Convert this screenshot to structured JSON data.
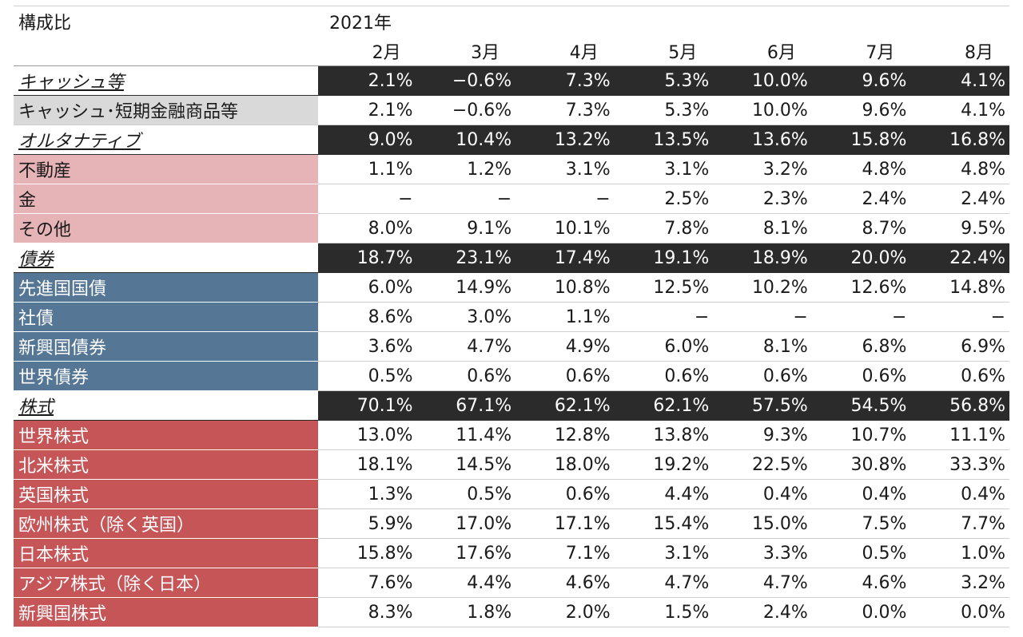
{
  "title": "構成比",
  "year": "2021年",
  "months": [
    "2月",
    "3月",
    "4月",
    "5月",
    "6月",
    "7月",
    "8月"
  ],
  "rows": [
    {
      "label": "キャッシュ等",
      "kind": "cat",
      "values": [
        "2.1%",
        "−0.6%",
        "7.3%",
        "5.3%",
        "10.0%",
        "9.6%",
        "4.1%"
      ]
    },
    {
      "label": "キャッシュ･短期金融商品等",
      "kind": "gray",
      "values": [
        "2.1%",
        "−0.6%",
        "7.3%",
        "5.3%",
        "10.0%",
        "9.6%",
        "4.1%"
      ]
    },
    {
      "label": "オルタナティブ",
      "kind": "cat",
      "values": [
        "9.0%",
        "10.4%",
        "13.2%",
        "13.5%",
        "13.6%",
        "15.8%",
        "16.8%"
      ]
    },
    {
      "label": "不動産",
      "kind": "pink",
      "values": [
        "1.1%",
        "1.2%",
        "3.1%",
        "3.1%",
        "3.2%",
        "4.8%",
        "4.8%"
      ]
    },
    {
      "label": "金",
      "kind": "pink",
      "values": [
        "−",
        "−",
        "−",
        "2.5%",
        "2.3%",
        "2.4%",
        "2.4%"
      ]
    },
    {
      "label": "その他",
      "kind": "pink",
      "values": [
        "8.0%",
        "9.1%",
        "10.1%",
        "7.8%",
        "8.1%",
        "8.7%",
        "9.5%"
      ]
    },
    {
      "label": "債券",
      "kind": "cat",
      "values": [
        "18.7%",
        "23.1%",
        "17.4%",
        "19.1%",
        "18.9%",
        "20.0%",
        "22.4%"
      ]
    },
    {
      "label": "先進国国債",
      "kind": "blue",
      "values": [
        "6.0%",
        "14.9%",
        "10.8%",
        "12.5%",
        "10.2%",
        "12.6%",
        "14.8%"
      ]
    },
    {
      "label": "社債",
      "kind": "blue",
      "values": [
        "8.6%",
        "3.0%",
        "1.1%",
        "−",
        "−",
        "−",
        "−"
      ]
    },
    {
      "label": "新興国債券",
      "kind": "blue",
      "values": [
        "3.6%",
        "4.7%",
        "4.9%",
        "6.0%",
        "8.1%",
        "6.8%",
        "6.9%"
      ]
    },
    {
      "label": "世界債券",
      "kind": "blue",
      "values": [
        "0.5%",
        "0.6%",
        "0.6%",
        "0.6%",
        "0.6%",
        "0.6%",
        "0.6%"
      ]
    },
    {
      "label": "株式",
      "kind": "cat",
      "values": [
        "70.1%",
        "67.1%",
        "62.1%",
        "62.1%",
        "57.5%",
        "54.5%",
        "56.8%"
      ]
    },
    {
      "label": "世界株式",
      "kind": "red",
      "values": [
        "13.0%",
        "11.4%",
        "12.8%",
        "13.8%",
        "9.3%",
        "10.7%",
        "11.1%"
      ]
    },
    {
      "label": "北米株式",
      "kind": "red",
      "values": [
        "18.1%",
        "14.5%",
        "18.0%",
        "19.2%",
        "22.5%",
        "30.8%",
        "33.3%"
      ]
    },
    {
      "label": "英国株式",
      "kind": "red",
      "values": [
        "1.3%",
        "0.5%",
        "0.6%",
        "4.4%",
        "0.4%",
        "0.4%",
        "0.4%"
      ]
    },
    {
      "label": "欧州株式（除く英国）",
      "kind": "red",
      "values": [
        "5.9%",
        "17.0%",
        "17.1%",
        "15.4%",
        "15.0%",
        "7.5%",
        "7.7%"
      ]
    },
    {
      "label": "日本株式",
      "kind": "red",
      "values": [
        "15.8%",
        "17.6%",
        "7.1%",
        "3.1%",
        "3.3%",
        "0.5%",
        "1.0%"
      ]
    },
    {
      "label": "アジア株式（除く日本）",
      "kind": "red",
      "values": [
        "7.6%",
        "4.4%",
        "4.6%",
        "4.7%",
        "4.7%",
        "4.6%",
        "3.2%"
      ]
    },
    {
      "label": "新興国株式",
      "kind": "red",
      "values": [
        "8.3%",
        "1.8%",
        "2.0%",
        "1.5%",
        "2.4%",
        "0.0%",
        "0.0%"
      ]
    }
  ],
  "colors": {
    "category_bar": "#2b2b2b",
    "cash_label_bg": "#d9d9d9",
    "alternative_label_bg": "#e6b3b6",
    "bond_label_bg": "#557694",
    "equity_label_bg": "#c65558"
  }
}
